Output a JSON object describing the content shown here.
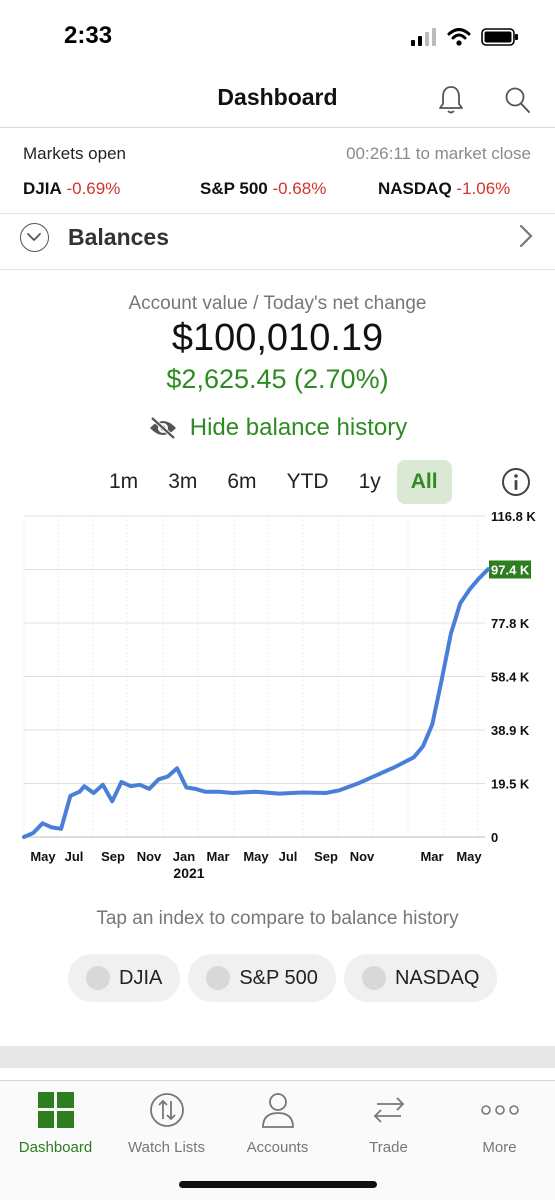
{
  "status_bar": {
    "time": "2:33"
  },
  "nav": {
    "title": "Dashboard"
  },
  "market": {
    "status": "Markets open",
    "countdown": "00:26:11 to market close",
    "indices": [
      {
        "name": "DJIA",
        "change": "-0.69%"
      },
      {
        "name": "S&P 500",
        "change": "-0.68%"
      },
      {
        "name": "NASDAQ",
        "change": "-1.06%"
      }
    ]
  },
  "balances": {
    "label": "Balances"
  },
  "account": {
    "label": "Account value / Today's net change",
    "value": "$100,010.19",
    "change": "$2,625.45 (2.70%)",
    "hide_history": "Hide balance history"
  },
  "ranges": [
    "1m",
    "3m",
    "6m",
    "YTD",
    "1y",
    "All"
  ],
  "active_range": "All",
  "compare": {
    "prompt": "Tap an index to compare to balance history",
    "chips": [
      "DJIA",
      "S&P 500",
      "NASDAQ"
    ]
  },
  "tabs": [
    {
      "label": "Dashboard",
      "icon": "dashboard-grid-icon",
      "active": true
    },
    {
      "label": "Watch Lists",
      "icon": "watch-list-icon",
      "active": false
    },
    {
      "label": "Accounts",
      "icon": "person-icon",
      "active": false
    },
    {
      "label": "Trade",
      "icon": "trade-arrows-icon",
      "active": false
    },
    {
      "label": "More",
      "icon": "more-dots-icon",
      "active": false
    }
  ],
  "colors": {
    "accent_green": "#2e8b22",
    "negative_red": "#d1342b",
    "line_blue": "#4a7fd9",
    "highlight_green": "#2e7d1f"
  },
  "chart_data": {
    "type": "line",
    "x_tick_labels": [
      "May",
      "Jul",
      "Sep",
      "Nov",
      "Jan",
      "Mar",
      "May",
      "Jul",
      "Sep",
      "Nov",
      "Mar",
      "May"
    ],
    "x_year_label": "2021",
    "y_tick_labels": [
      "116.8 K",
      "97.4 K",
      "77.8 K",
      "58.4 K",
      "38.9 K",
      "19.5 K",
      "0"
    ],
    "ylim": [
      0,
      116800
    ],
    "highlight_label": "97.4 K",
    "grid": true,
    "series": [
      {
        "x": [
          0,
          0.02,
          0.04,
          0.06,
          0.08,
          0.1,
          0.12,
          0.13,
          0.15,
          0.17,
          0.19,
          0.21,
          0.23,
          0.25,
          0.27,
          0.29,
          0.31,
          0.33,
          0.35,
          0.37,
          0.38,
          0.39,
          0.4,
          0.42,
          0.45,
          0.5,
          0.55,
          0.6,
          0.65,
          0.68,
          0.72,
          0.76,
          0.8,
          0.84,
          0.86,
          0.88,
          0.9,
          0.92,
          0.94,
          0.96,
          0.98,
          1.0
        ],
        "values": [
          0,
          1500,
          5000,
          3500,
          3000,
          15000,
          16500,
          18500,
          16000,
          19000,
          13000,
          20000,
          18500,
          19000,
          17500,
          21000,
          22000,
          25000,
          18000,
          17500,
          17000,
          16500,
          16500,
          16500,
          16000,
          16500,
          15800,
          16200,
          16000,
          17000,
          19500,
          22500,
          25500,
          29000,
          33000,
          41000,
          57000,
          74000,
          85000,
          90000,
          94000,
          97400
        ]
      }
    ]
  }
}
